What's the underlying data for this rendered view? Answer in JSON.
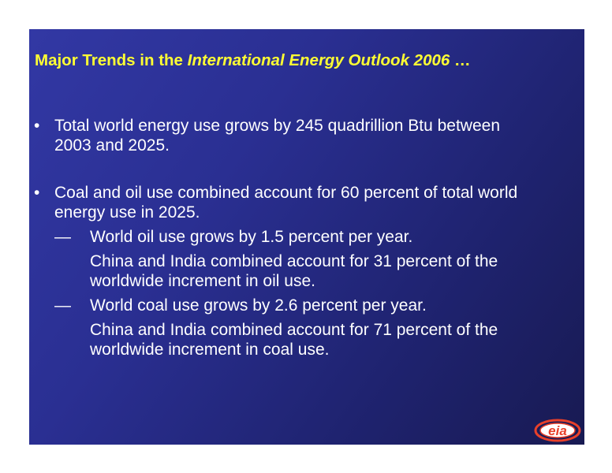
{
  "title": {
    "prefix": "Major Trends in the ",
    "italic": "International Energy Outlook 2006",
    "suffix": " …"
  },
  "bullets": [
    {
      "marker": "•",
      "text": "Total world energy use grows by 245 quadrillion Btu between 2003 and 2025."
    },
    {
      "marker": "•",
      "text": "Coal and oil use combined account for 60 percent of total world energy use in 2025."
    }
  ],
  "subitems": [
    {
      "marker": "—",
      "text": "World oil use grows by 1.5 percent per year.",
      "detail": "China and India combined account for 31 percent of the worldwide increment in oil use."
    },
    {
      "marker": "—",
      "text": "World coal use grows by 2.6 percent per year.",
      "detail": "China and India combined account for 71 percent of the worldwide increment in coal use."
    }
  ],
  "logo": {
    "text": "eia",
    "icon": "eia-logo-icon"
  },
  "colors": {
    "background": "#2a2f92",
    "title": "#ffff33",
    "body_text": "#ffffff",
    "logo": "#e8402a"
  }
}
